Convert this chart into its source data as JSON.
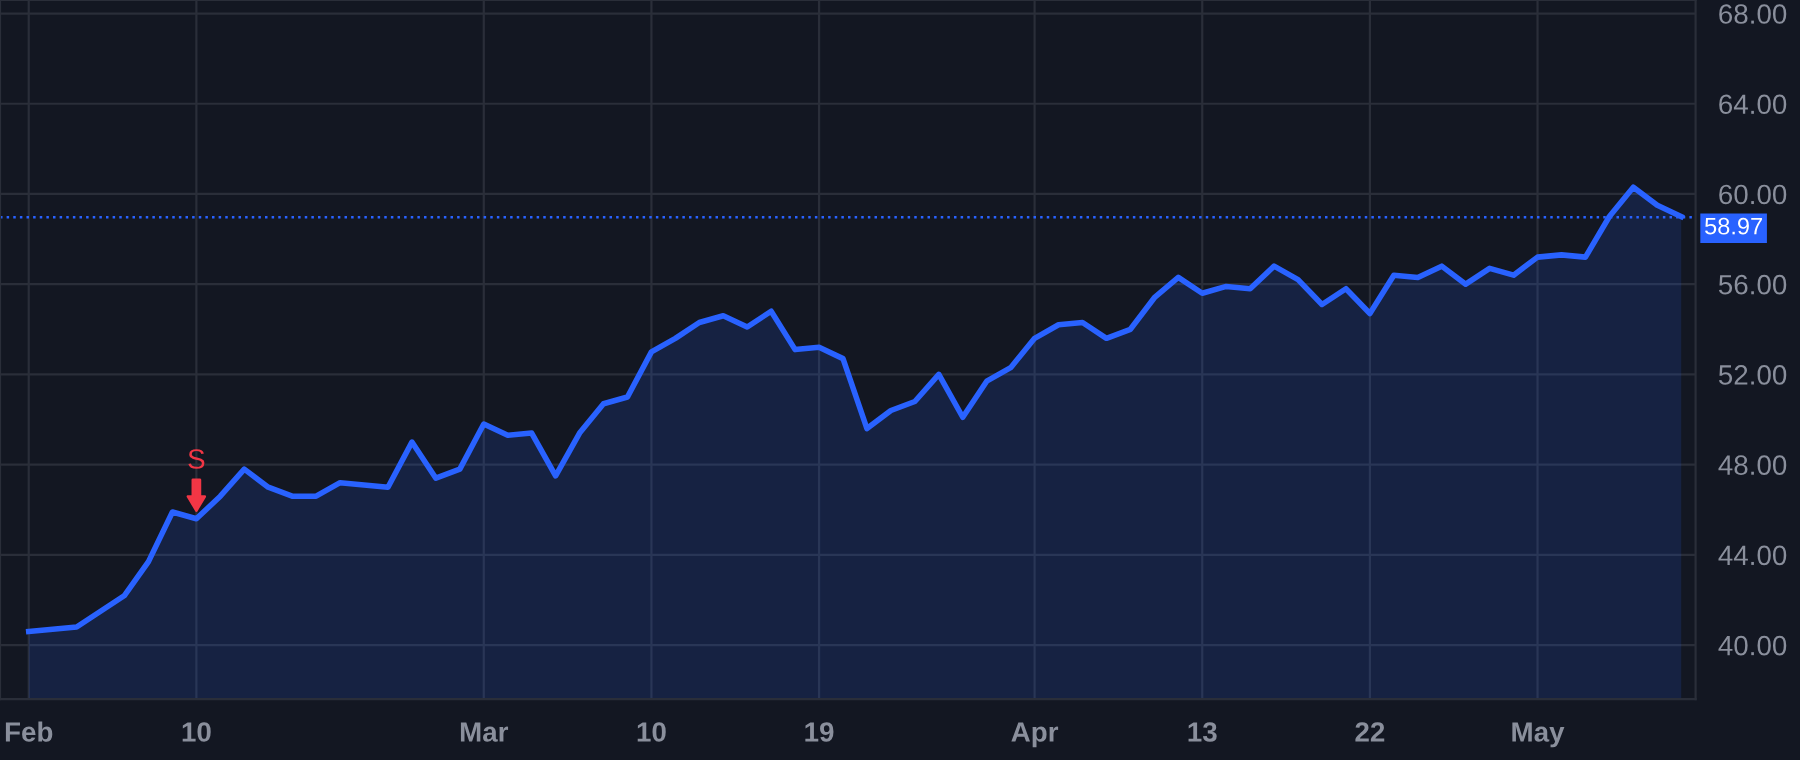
{
  "chart_data": {
    "type": "area",
    "categories": [
      "Feb",
      null,
      null,
      null,
      null,
      null,
      null,
      "10",
      null,
      null,
      null,
      null,
      null,
      null,
      null,
      null,
      null,
      null,
      null,
      "Mar",
      null,
      null,
      null,
      null,
      null,
      null,
      "10",
      null,
      null,
      null,
      null,
      null,
      null,
      "19",
      null,
      null,
      null,
      null,
      null,
      null,
      null,
      null,
      "Apr",
      null,
      null,
      null,
      null,
      null,
      null,
      "13",
      null,
      null,
      null,
      null,
      null,
      null,
      "22",
      null,
      null,
      null,
      null,
      null,
      null,
      "May",
      null,
      null,
      null,
      null,
      null,
      null
    ],
    "series": [
      {
        "color": "#2962ff",
        "values": [
          40.6,
          40.7,
          40.8,
          41.5,
          42.2,
          43.7,
          45.9,
          45.6,
          46.6,
          47.8,
          47.0,
          46.6,
          46.6,
          47.2,
          47.1,
          47.0,
          49.0,
          47.4,
          47.8,
          49.8,
          49.3,
          49.4,
          47.5,
          49.4,
          50.7,
          51.0,
          53.0,
          53.6,
          54.3,
          54.6,
          54.1,
          54.8,
          53.1,
          53.2,
          52.7,
          49.6,
          50.4,
          50.8,
          52.0,
          50.1,
          51.7,
          52.3,
          53.6,
          54.2,
          54.3,
          53.6,
          54.0,
          55.4,
          56.3,
          55.6,
          55.9,
          55.8,
          56.8,
          56.2,
          55.1,
          55.8,
          54.7,
          56.4,
          56.3,
          56.8,
          56.0,
          56.7,
          56.4,
          57.2,
          57.3,
          57.2,
          59.0,
          60.3,
          59.5,
          59.0
        ]
      }
    ],
    "ylim": [
      37.6,
      68.6
    ],
    "yticks": [
      {
        "value": 40,
        "label": "40.00"
      },
      {
        "value": 44,
        "label": "44.00"
      },
      {
        "value": 48,
        "label": "48.00"
      },
      {
        "value": 52,
        "label": "52.00"
      },
      {
        "value": 56,
        "label": "56.00"
      },
      {
        "value": 60,
        "label": "60.00"
      },
      {
        "value": 64,
        "label": "64.00"
      },
      {
        "value": 68,
        "label": "68.00"
      }
    ],
    "grid": true,
    "ref_lines": [
      {
        "axis": "y",
        "value": 58.97,
        "label": "58.97",
        "color": "#2962ff",
        "line_style": "dotted"
      }
    ],
    "annotations": [
      {
        "text": "S",
        "x": "10",
        "y": 45.6
      }
    ]
  }
}
